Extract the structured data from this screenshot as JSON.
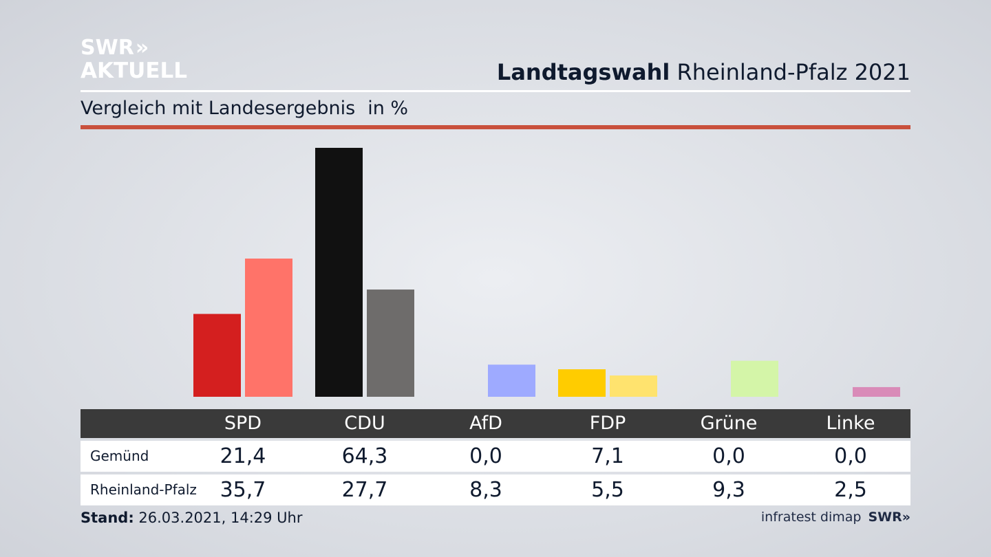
{
  "header": {
    "logo_line1": "SWR",
    "logo_chevrons": "»",
    "logo_line2": "AKTUELL",
    "title_bold": "Landtagswahl",
    "title_rest": " Rheinland-Pfalz 2021",
    "subtitle": "Vergleich mit Landesergebnis",
    "unit": "in %"
  },
  "colors": {
    "rule_red": "#c9503c",
    "table_header": "#3a3a3a"
  },
  "chart_data": {
    "type": "bar",
    "title": "Vergleich mit Landesergebnis",
    "categories": [
      "SPD",
      "CDU",
      "AfD",
      "FDP",
      "Grüne",
      "Linke"
    ],
    "series": [
      {
        "name": "Gemünd",
        "values": [
          21.4,
          64.3,
          0.0,
          7.1,
          0.0,
          0.0
        ],
        "labels": [
          "21,4",
          "64,3",
          "0,0",
          "7,1",
          "0,0",
          "0,0"
        ],
        "colors": [
          "#d41f1f",
          "#111111",
          "#99aaff",
          "#ffcc00",
          "#bfe68c",
          "#cc6699"
        ]
      },
      {
        "name": "Rheinland-Pfalz",
        "values": [
          35.7,
          27.7,
          8.3,
          5.5,
          9.3,
          2.5
        ],
        "labels": [
          "35,7",
          "27,7",
          "8,3",
          "5,5",
          "9,3",
          "2,5"
        ],
        "colors": [
          "#ff7369",
          "#6e6c6b",
          "#9eaaff",
          "#ffe36e",
          "#d4f5a8",
          "#d98bb8"
        ]
      }
    ],
    "grid": false,
    "legend": "table below chart"
  },
  "footer": {
    "stand_label": "Stand:",
    "stand_value": " 26.03.2021, 14:29 Uhr",
    "source": "infratest dimap",
    "source_logo": "SWR»"
  }
}
